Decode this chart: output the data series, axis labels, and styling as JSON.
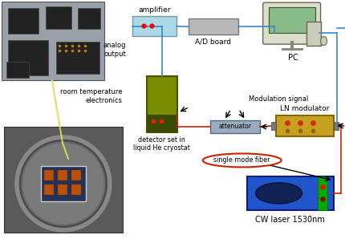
{
  "bg_color": "#ffffff",
  "fig_width": 4.3,
  "fig_height": 2.98,
  "dpi": 100,
  "labels": {
    "amplifier": "amplifier",
    "ad_board": "A/D board",
    "pc": "PC",
    "analog_output": "analog\noutput",
    "room_temp": "room temperature\nelectronics",
    "detector": "detector set in\nliquid He cryostat",
    "attenuator": "attenuator",
    "ln_mod": "LN modulator",
    "mod_signal": "Modulation signal",
    "single_mode": "single mode fiber",
    "cw_laser": "CW laser 1530nm"
  },
  "colors": {
    "amplifier_fill": "#add8e6",
    "detector_fill": "#7a8c00",
    "detector_dark": "#3a4a00",
    "attenuator_fill": "#9aacbe",
    "ln_fill": "#c8a020",
    "cw_laser_fill": "#2255cc",
    "cw_laser_green": "#00aa00",
    "red_line": "#cc2200",
    "blue_line": "#3388cc",
    "black_line": "#000000",
    "ellipse_stroke": "#cc2200",
    "photo1_bg": "#9aa0a8",
    "photo2_bg": "#6a6a6a",
    "chip_dark": "#222222",
    "cryo_ring": "#aaaaaa",
    "cryo_inner": "#888888",
    "board_fill": "#223355",
    "comp_fill": "#cc5500"
  }
}
